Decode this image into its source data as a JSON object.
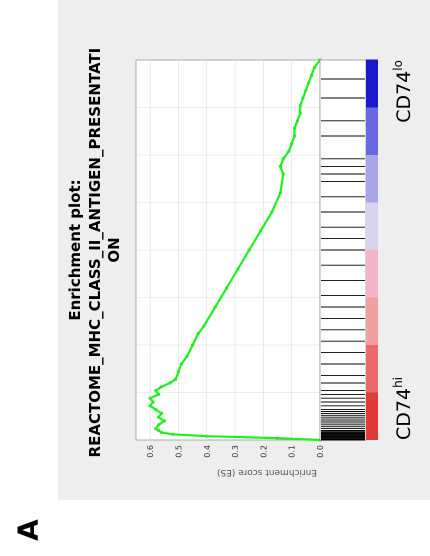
{
  "panel_label": "A",
  "group_high": {
    "base": "CD74",
    "sup": "hi"
  },
  "group_low": {
    "base": "CD74",
    "sup": "lo"
  },
  "colors": {
    "panel_bg": "#eeeeee",
    "plot_bg": "#ffffff",
    "curve": "#22ee22",
    "hits": "#000000",
    "grid": "#dddddd"
  },
  "chart_data": {
    "type": "line",
    "title": "Enrichment plot:",
    "subtitle": "REACTOME_MHC_CLASS_II_ANTIGEN_PRESENTATION",
    "ylabel": "Enrichment score (ES)",
    "xlabel": "",
    "orientation": "rotated 90° counter-clockwise",
    "ylim": [
      0.0,
      0.65
    ],
    "yticks": [
      "0.0",
      "0.1",
      "0.2",
      "0.3",
      "0.4",
      "0.5",
      "0.6"
    ],
    "xlim": [
      0,
      1
    ],
    "grid": true,
    "series": [
      {
        "x": [
          0.0,
          0.005,
          0.01,
          0.015,
          0.02,
          0.025,
          0.03,
          0.04,
          0.05,
          0.06,
          0.07,
          0.08,
          0.09,
          0.1,
          0.11,
          0.12,
          0.13,
          0.14,
          0.15,
          0.16,
          0.18,
          0.2,
          0.22,
          0.25,
          0.28,
          0.3,
          0.35,
          0.4,
          0.45,
          0.5,
          0.55,
          0.6,
          0.65,
          0.7,
          0.72,
          0.74,
          0.76,
          0.78,
          0.8,
          0.82,
          0.84,
          0.86,
          0.88,
          0.9,
          0.92,
          0.94,
          0.96,
          0.98,
          1.0
        ],
        "y": [
          0.0,
          0.15,
          0.4,
          0.52,
          0.56,
          0.57,
          0.58,
          0.57,
          0.55,
          0.57,
          0.56,
          0.58,
          0.6,
          0.59,
          0.6,
          0.57,
          0.58,
          0.56,
          0.53,
          0.51,
          0.5,
          0.49,
          0.47,
          0.45,
          0.43,
          0.41,
          0.37,
          0.33,
          0.29,
          0.25,
          0.21,
          0.17,
          0.14,
          0.13,
          0.14,
          0.13,
          0.11,
          0.1,
          0.09,
          0.09,
          0.08,
          0.07,
          0.07,
          0.06,
          0.05,
          0.04,
          0.03,
          0.02,
          0.0
        ]
      }
    ],
    "hits": [
      0.0,
      0.002,
      0.004,
      0.006,
      0.008,
      0.01,
      0.012,
      0.014,
      0.016,
      0.018,
      0.02,
      0.022,
      0.025,
      0.03,
      0.035,
      0.04,
      0.045,
      0.05,
      0.055,
      0.06,
      0.065,
      0.07,
      0.075,
      0.08,
      0.09,
      0.1,
      0.11,
      0.12,
      0.13,
      0.15,
      0.17,
      0.2,
      0.23,
      0.26,
      0.29,
      0.32,
      0.35,
      0.38,
      0.42,
      0.46,
      0.5,
      0.53,
      0.56,
      0.6,
      0.64,
      0.68,
      0.7,
      0.72,
      0.74,
      0.8,
      0.84,
      0.9,
      0.95
    ],
    "ranked_list_gradient": [
      "#e03b3b",
      "#e86a6a",
      "#f0a0a0",
      "#f5b5c8",
      "#d8d4ee",
      "#a8a4e8",
      "#6868e0",
      "#1a1acc"
    ]
  }
}
